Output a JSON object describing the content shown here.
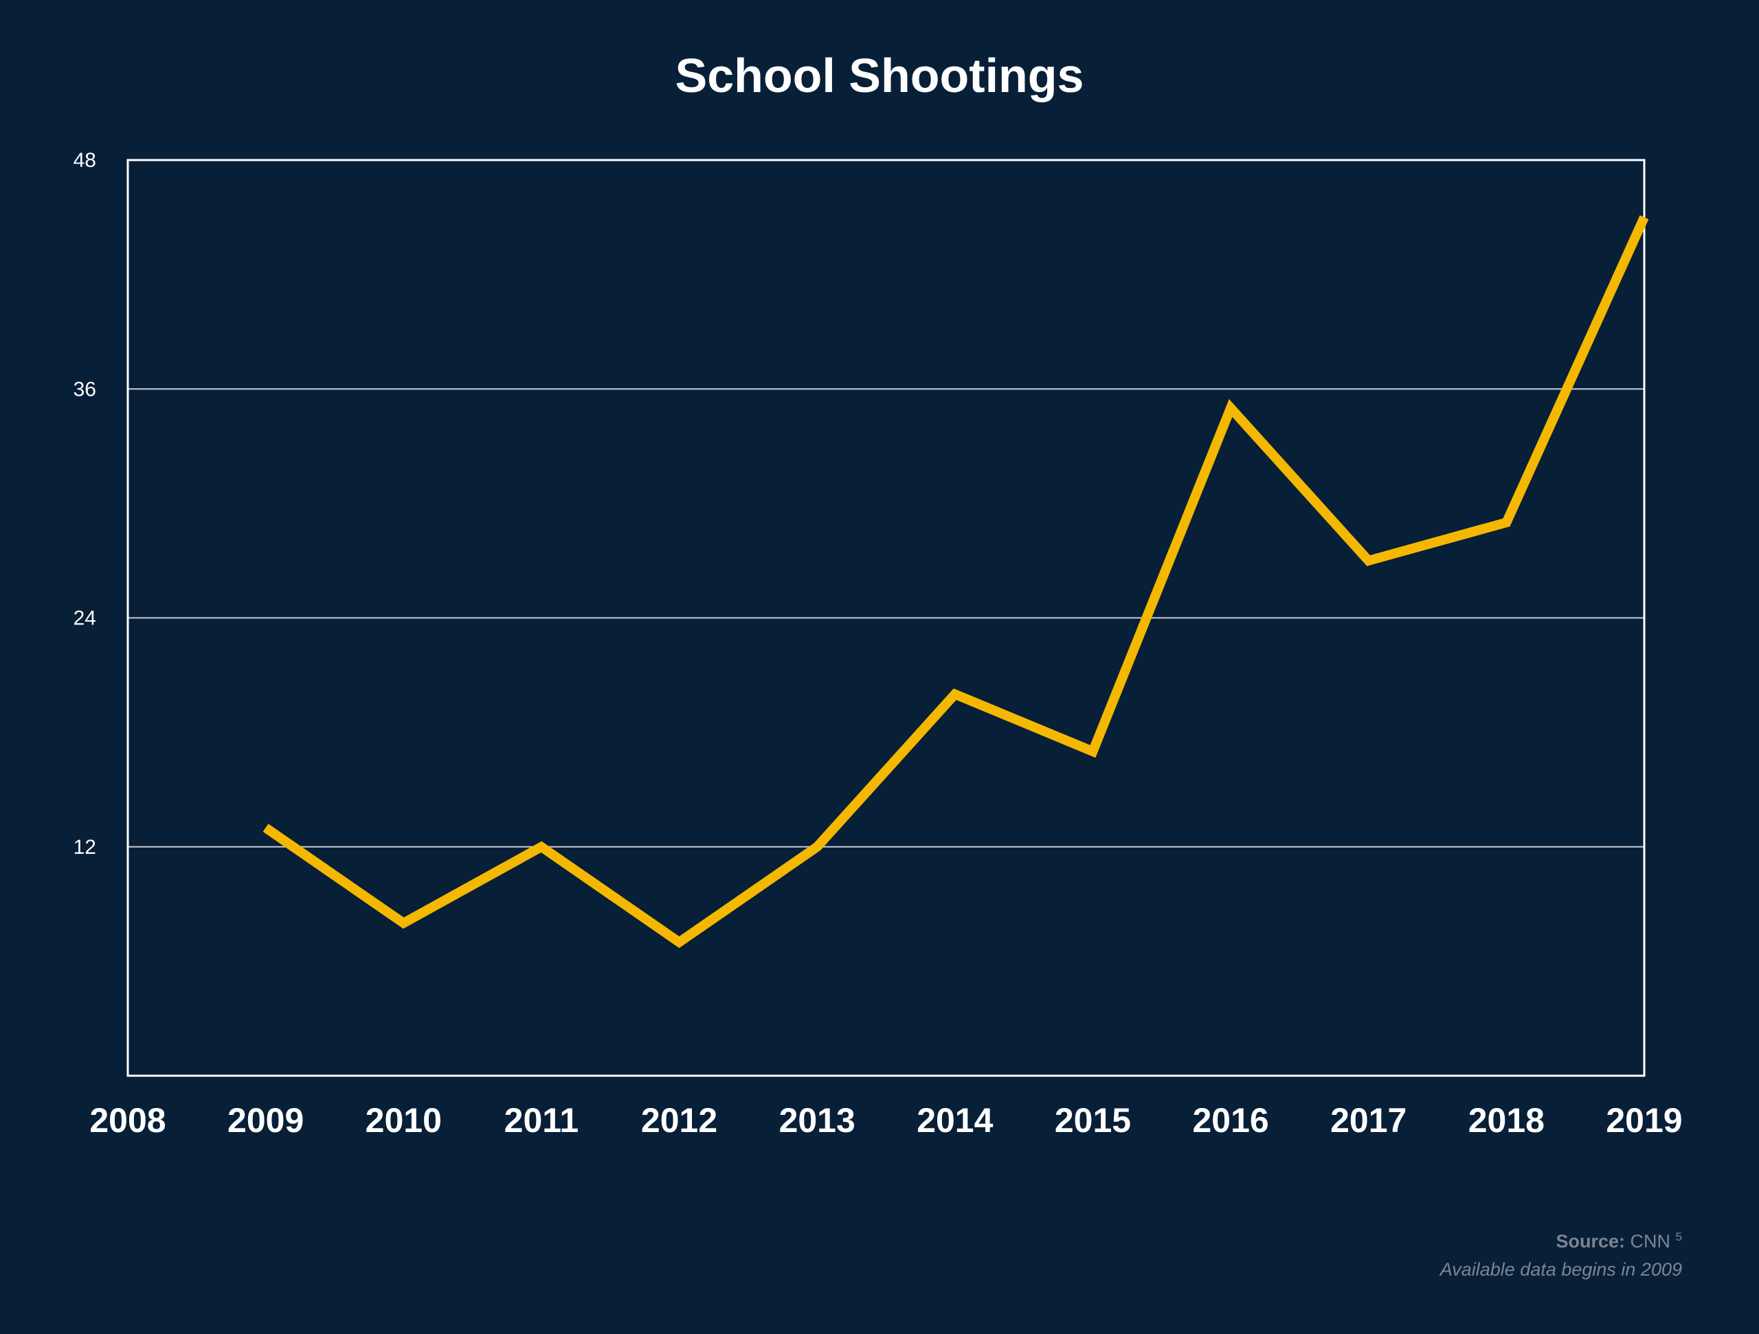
{
  "colors": {
    "background": "#081f38",
    "line": "#f5b800",
    "grid": "#c8ccd2",
    "frame": "#ffffff",
    "text": "#ffffff",
    "source_text": "#7b8591"
  },
  "chart_data": {
    "type": "line",
    "title": "School Shootings",
    "xlabel": "",
    "ylabel": "",
    "x_ticks": [
      "2008",
      "2009",
      "2010",
      "2011",
      "2012",
      "2013",
      "2014",
      "2015",
      "2016",
      "2017",
      "2018",
      "2019"
    ],
    "y_ticks": [
      "12",
      "24",
      "36",
      "48"
    ],
    "xlim": [
      2008,
      2019
    ],
    "ylim": [
      0,
      48
    ],
    "grid": "horizontal",
    "legend": "none",
    "series": [
      {
        "x": [
          2009,
          2010,
          2011,
          2012,
          2013,
          2014,
          2015,
          2016,
          2017,
          2018,
          2019
        ],
        "values": [
          13,
          8,
          12,
          7,
          12,
          20,
          17,
          35,
          27,
          29,
          45
        ]
      }
    ]
  },
  "source": {
    "label": "Source:",
    "name": "CNN",
    "footnote": "5",
    "note": "Available data begins in 2009"
  }
}
